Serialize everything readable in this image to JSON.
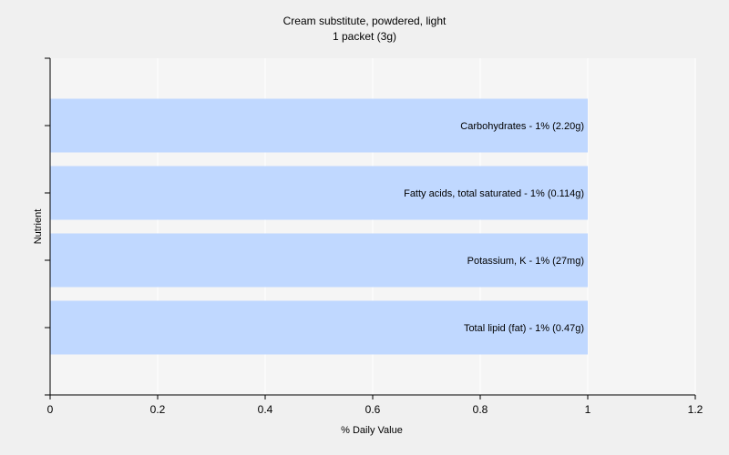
{
  "chart_data": {
    "type": "bar",
    "orientation": "horizontal",
    "title": "Cream substitute, powdered, light",
    "subtitle": "1 packet (3g)",
    "xlabel": "% Daily Value",
    "ylabel": "Nutrient",
    "xlim": [
      0,
      1.2
    ],
    "xticks": [
      "0",
      "0.2",
      "0.4",
      "0.6",
      "0.8",
      "1",
      "1.2"
    ],
    "grid": true,
    "categories": [
      "Carbohydrates",
      "Fatty acids, total saturated",
      "Potassium, K",
      "Total lipid (fat)"
    ],
    "values": [
      1,
      1,
      1,
      1
    ],
    "labels": [
      "Carbohydrates - 1% (2.20g)",
      "Fatty acids, total saturated - 1% (0.114g)",
      "Potassium, K - 1% (27mg)",
      "Total lipid (fat) - 1% (0.47g)"
    ],
    "bar_color": "#c0d8ff",
    "plot_background": "#f5f5f5",
    "gridline_color": "#ffffff"
  }
}
